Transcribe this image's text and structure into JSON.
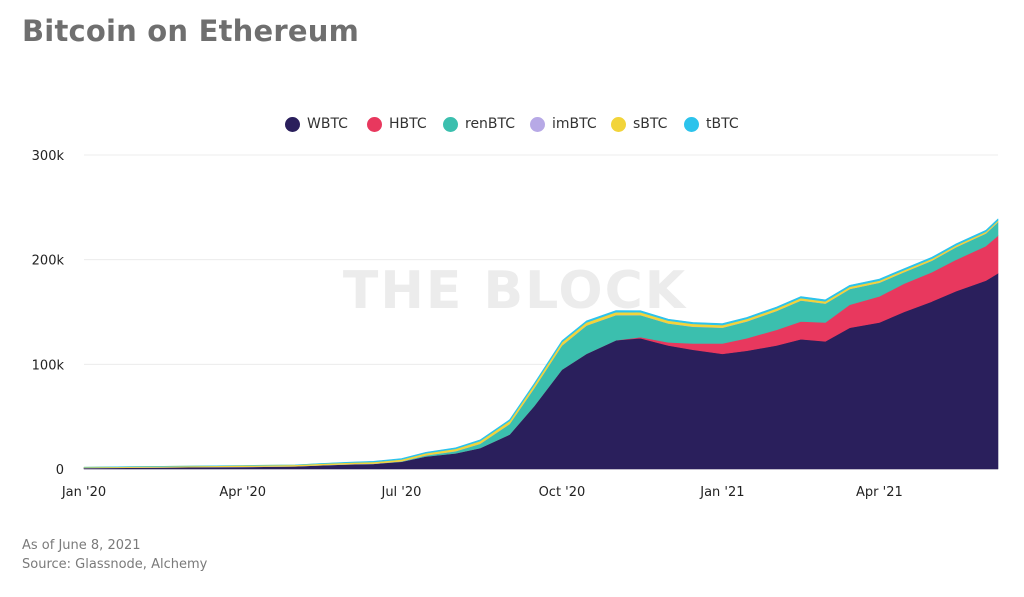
{
  "title": "Bitcoin on Ethereum",
  "watermark": "THE BLOCK",
  "footer": {
    "as_of": "As of June 8, 2021",
    "source": "Source: Glassnode, Alchemy"
  },
  "chart_data": {
    "type": "area",
    "stacked": true,
    "title": "Bitcoin on Ethereum",
    "xlabel": "",
    "ylabel": "",
    "ylim": [
      0,
      300000
    ],
    "yticks": [
      {
        "value": 0,
        "label": "0"
      },
      {
        "value": 100000,
        "label": "100k"
      },
      {
        "value": 200000,
        "label": "200k"
      },
      {
        "value": 300000,
        "label": "300k"
      }
    ],
    "xticks": [
      "Jan '20",
      "Apr '20",
      "Jul '20",
      "Oct '20",
      "Jan '21",
      "Apr '21"
    ],
    "legend_position": "top-center",
    "grid": "horizontal",
    "x": [
      "2020-01-01",
      "2020-02-01",
      "2020-03-01",
      "2020-04-01",
      "2020-05-01",
      "2020-05-15",
      "2020-06-01",
      "2020-06-15",
      "2020-07-01",
      "2020-07-15",
      "2020-08-01",
      "2020-08-15",
      "2020-09-01",
      "2020-09-15",
      "2020-10-01",
      "2020-10-15",
      "2020-11-01",
      "2020-11-15",
      "2020-12-01",
      "2020-12-15",
      "2021-01-01",
      "2021-01-15",
      "2021-02-01",
      "2021-02-15",
      "2021-03-01",
      "2021-03-15",
      "2021-04-01",
      "2021-04-15",
      "2021-05-01",
      "2021-05-15",
      "2021-06-01",
      "2021-06-08"
    ],
    "series": [
      {
        "name": "WBTC",
        "color": "#2a1f5c",
        "values": [
          1000,
          1300,
          1700,
          2000,
          2500,
          3500,
          4500,
          5000,
          7000,
          12000,
          15000,
          20000,
          33000,
          60000,
          95000,
          110000,
          123000,
          125000,
          118000,
          114000,
          110000,
          113000,
          118000,
          124000,
          122000,
          135000,
          140000,
          150000,
          160000,
          170000,
          180000,
          187000
        ]
      },
      {
        "name": "HBTC",
        "color": "#e8385e",
        "values": [
          0,
          0,
          0,
          0,
          0,
          0,
          0,
          0,
          0,
          0,
          0,
          0,
          0,
          0,
          0,
          0,
          0,
          1000,
          3000,
          6000,
          10000,
          12000,
          15000,
          17000,
          18000,
          22000,
          25000,
          27000,
          28000,
          30000,
          33000,
          36000
        ]
      },
      {
        "name": "renBTC",
        "color": "#3bbfae",
        "values": [
          0,
          0,
          0,
          0,
          0,
          0,
          0,
          0,
          300,
          1000,
          2000,
          4000,
          10000,
          17000,
          23000,
          27000,
          24000,
          21000,
          18000,
          16000,
          15000,
          16000,
          18000,
          20000,
          18000,
          15000,
          13000,
          11000,
          11000,
          12000,
          12000,
          13000
        ]
      },
      {
        "name": "imBTC",
        "color": "#b7a9e6",
        "values": [
          150,
          150,
          150,
          150,
          150,
          150,
          150,
          150,
          150,
          150,
          150,
          150,
          150,
          150,
          150,
          150,
          150,
          150,
          150,
          150,
          150,
          150,
          150,
          150,
          150,
          150,
          150,
          150,
          150,
          150,
          150,
          150
        ]
      },
      {
        "name": "sBTC",
        "color": "#f2d43a",
        "values": [
          600,
          900,
          1000,
          1200,
          1300,
          1400,
          1500,
          1600,
          1700,
          1900,
          2100,
          2500,
          2800,
          3000,
          3000,
          2900,
          2800,
          2700,
          2600,
          2500,
          2400,
          2300,
          2200,
          2200,
          2100,
          2000,
          1900,
          1800,
          1700,
          1600,
          1500,
          1400
        ]
      },
      {
        "name": "tBTC",
        "color": "#2cc3ec",
        "values": [
          0,
          0,
          0,
          0,
          0,
          200,
          400,
          600,
          800,
          900,
          1000,
          1100,
          1200,
          1300,
          1400,
          1400,
          1400,
          1400,
          1400,
          1400,
          1400,
          1400,
          1400,
          1400,
          1400,
          1400,
          1400,
          1400,
          1400,
          1400,
          1400,
          1400
        ]
      }
    ]
  }
}
